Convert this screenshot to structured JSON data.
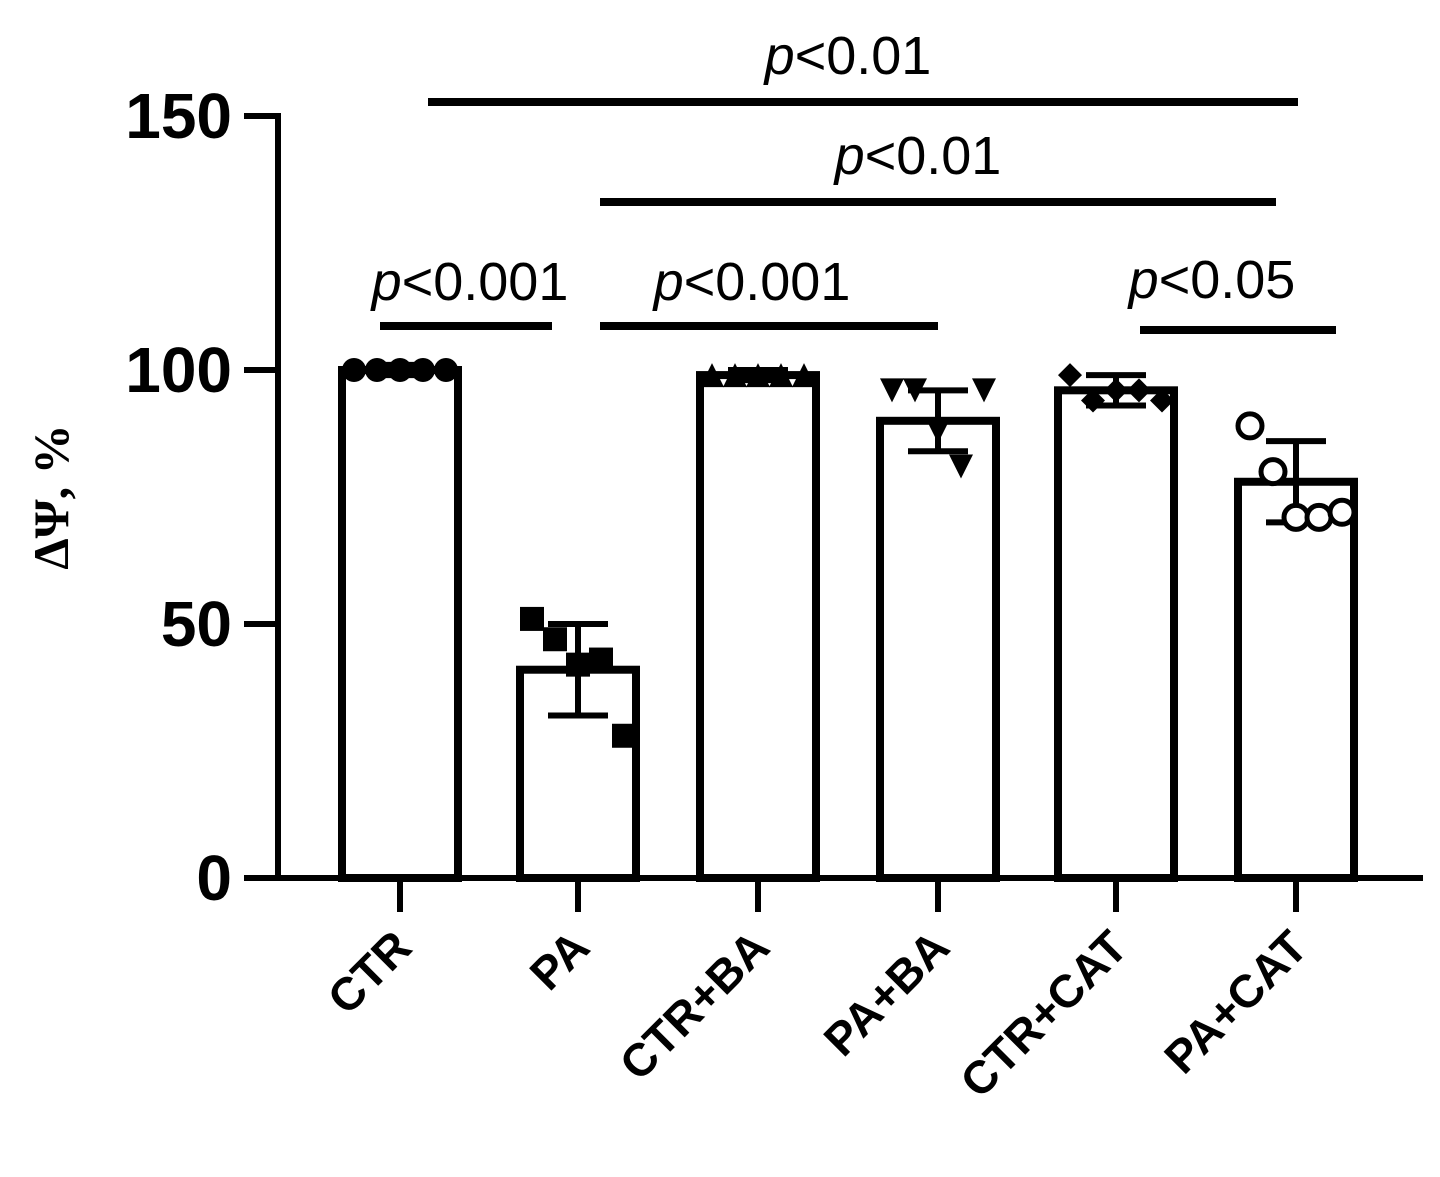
{
  "chart_data": {
    "type": "bar",
    "title": "",
    "xlabel": "",
    "ylabel": "ΔΨ, %",
    "ylim": [
      0,
      150
    ],
    "yticks": [
      0,
      50,
      100,
      150
    ],
    "grid": false,
    "categories": [
      "CTR",
      "PA",
      "CTR+BA",
      "PA+BA",
      "CTR+CAT",
      "PA+CAT"
    ],
    "values": [
      100,
      41,
      99,
      90,
      96,
      78
    ],
    "error": [
      1,
      9,
      1,
      6,
      3,
      8
    ],
    "markers": [
      "circle",
      "square",
      "triangle-up",
      "triangle-down",
      "diamond",
      "open-circle"
    ],
    "points": [
      [
        100,
        100,
        100,
        100,
        100
      ],
      [
        51,
        47,
        42,
        43,
        28
      ],
      [
        99,
        99,
        99,
        99,
        99
      ],
      [
        96,
        96,
        88,
        81,
        96
      ],
      [
        99,
        94,
        96,
        96,
        94
      ],
      [
        89,
        80,
        71,
        71,
        72
      ]
    ],
    "comparisons": [
      {
        "from": 0,
        "to": 5,
        "label_prefix": "p",
        "label_rest": "<0.01"
      },
      {
        "from": 1,
        "to": 5,
        "label_prefix": "p",
        "label_rest": "<0.01"
      },
      {
        "from": 0,
        "to": 1,
        "label_prefix": "p",
        "label_rest": "<0.001"
      },
      {
        "from": 1,
        "to": 3,
        "label_prefix": "p",
        "label_rest": "<0.001"
      },
      {
        "from": 4,
        "to": 5,
        "label_prefix": "p",
        "label_rest": "<0.05"
      }
    ]
  }
}
